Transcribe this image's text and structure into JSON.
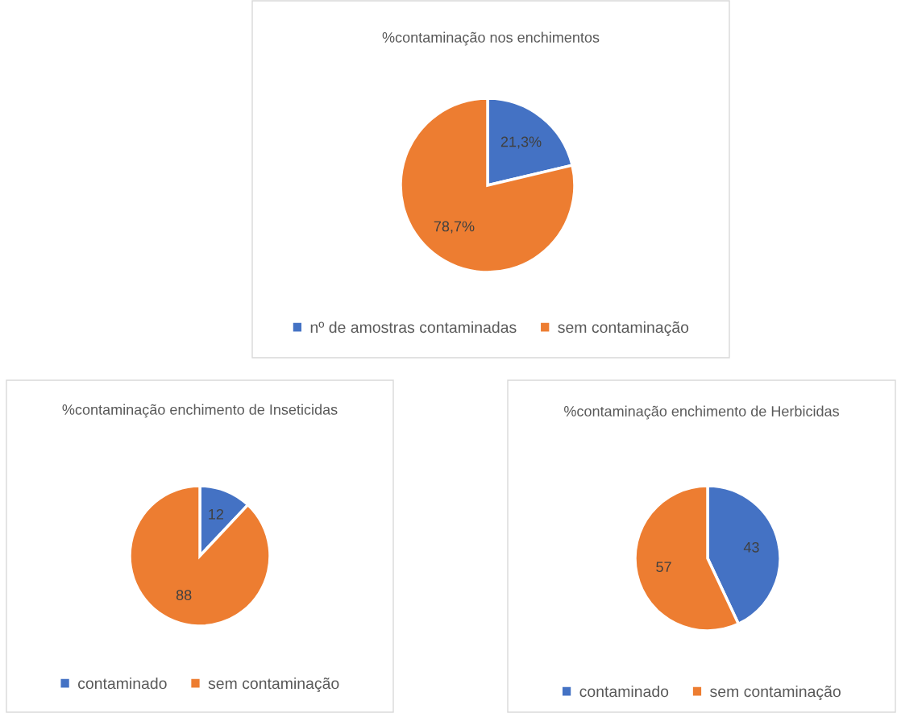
{
  "chart_data": [
    {
      "type": "pie",
      "title": "%contaminação nos enchimentos",
      "categories": [
        "nº de amostras contaminadas",
        "sem contaminação"
      ],
      "values": [
        21.3,
        78.7
      ],
      "value_labels": [
        "21,3%",
        "78,7%"
      ],
      "colors": [
        "#4472c4",
        "#ed7d31"
      ],
      "legend": "bottom"
    },
    {
      "type": "pie",
      "title": "%contaminação enchimento de Inseticidas",
      "categories": [
        "contaminado",
        "sem contaminação"
      ],
      "values": [
        12,
        88
      ],
      "data_labels": true,
      "colors": [
        "#4472c4",
        "#ed7d31"
      ],
      "legend": "bottom"
    },
    {
      "type": "pie",
      "title": "%contaminação enchimento de Herbicidas",
      "categories": [
        "contaminado",
        "sem contaminação"
      ],
      "values": [
        43,
        57
      ],
      "data_labels": true,
      "colors": [
        "#4472c4",
        "#ed7d31"
      ],
      "legend": "bottom"
    }
  ]
}
